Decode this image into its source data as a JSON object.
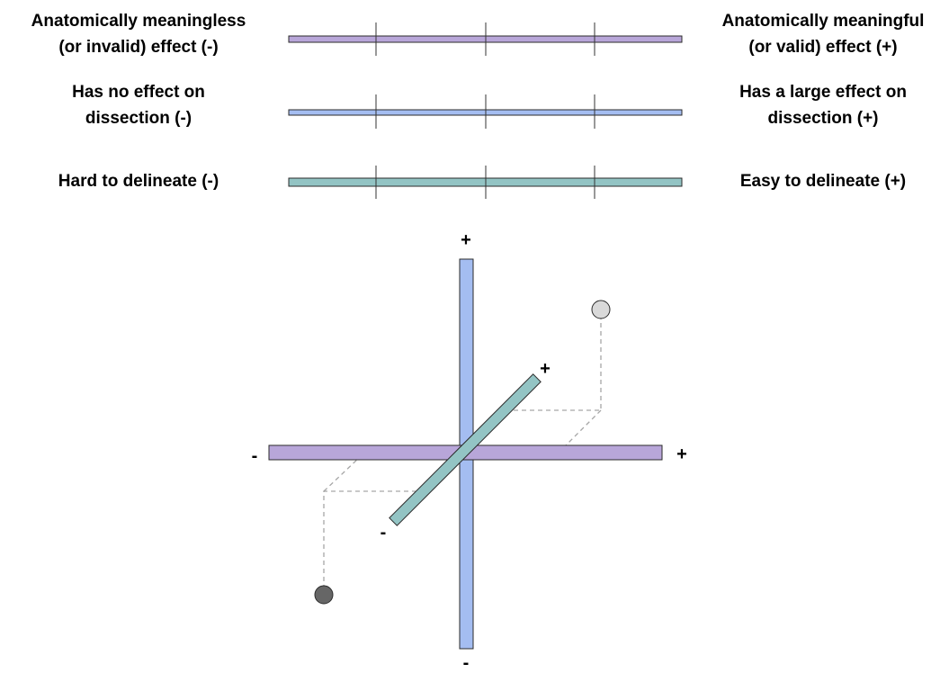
{
  "scales": [
    {
      "left": [
        "Anatomically meaningless",
        "(or invalid) effect (-)"
      ],
      "right": [
        "Anatomically meaningful",
        "(or valid) effect (+)"
      ],
      "color": "#b8a6d9"
    },
    {
      "left": [
        "Has no effect on",
        "dissection (-)"
      ],
      "right": [
        "Has a large effect on",
        "dissection (+)"
      ],
      "color": "#a4bdf1"
    },
    {
      "left": [
        "Hard to delineate (-)"
      ],
      "right": [
        "Easy to delineate (+)"
      ],
      "color": "#93c4c4"
    }
  ],
  "axes": {
    "plus": "+",
    "minus": "-"
  },
  "points": {
    "light_color": "#d9d9d9",
    "dark_color": "#666666"
  },
  "colors": {
    "outline": "#2b2b2b",
    "tick": "#333333",
    "dashed": "#a6a6a6"
  }
}
